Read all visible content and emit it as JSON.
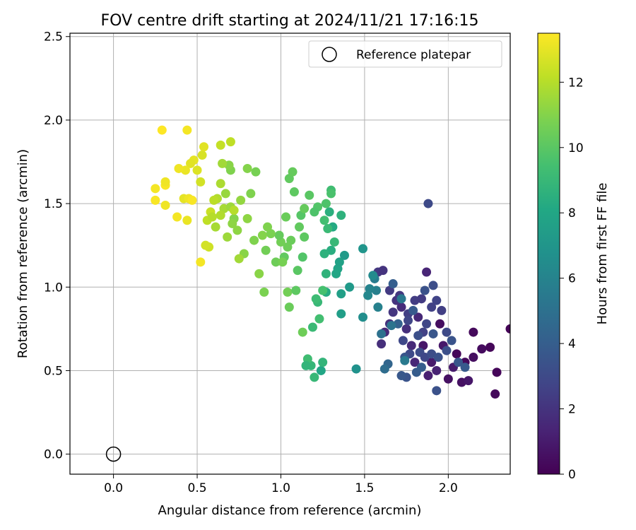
{
  "chart_data": {
    "type": "scatter",
    "title": "FOV centre drift starting at 2024/11/21 17:16:15",
    "xlabel": "Angular distance from reference (arcmin)",
    "ylabel": "Rotation from reference (arcmin)",
    "xlim": [
      -0.26,
      2.37
    ],
    "ylim": [
      -0.12,
      2.52
    ],
    "xticks": [
      0.0,
      0.5,
      1.0,
      1.5,
      2.0
    ],
    "xtick_labels": [
      "0.0",
      "0.5",
      "1.0",
      "1.5",
      "2.0"
    ],
    "yticks": [
      0.0,
      0.5,
      1.0,
      1.5,
      2.0,
      2.5
    ],
    "ytick_labels": [
      "0.0",
      "0.5",
      "1.0",
      "1.5",
      "2.0",
      "2.5"
    ],
    "grid": true,
    "legend": {
      "position": "top-right",
      "entries": [
        "Reference platepar"
      ]
    },
    "reference_point": {
      "name": "Reference platepar",
      "x": 0.0,
      "y": 0.0
    },
    "colorbar": {
      "label": "Hours from first FF file",
      "range": [
        0,
        13.5
      ],
      "ticks": [
        0,
        2,
        4,
        6,
        8,
        10,
        12
      ],
      "tick_labels": [
        "0",
        "2",
        "4",
        "6",
        "8",
        "10",
        "12"
      ],
      "colormap": "viridis"
    },
    "series": [
      {
        "points_format": [
          "x",
          "y",
          "hours"
        ],
        "points": [
          [
            2.05,
            0.6,
            0.2
          ],
          [
            2.1,
            0.55,
            0.3
          ],
          [
            2.15,
            0.58,
            0.5
          ],
          [
            2.2,
            0.63,
            0.4
          ],
          [
            2.25,
            0.64,
            0.2
          ],
          [
            2.29,
            0.49,
            0.2
          ],
          [
            2.28,
            0.36,
            0.3
          ],
          [
            2.15,
            0.73,
            0.3
          ],
          [
            1.95,
            0.78,
            0.5
          ],
          [
            1.85,
            0.65,
            0.8
          ],
          [
            2.0,
            0.45,
            0.6
          ],
          [
            2.08,
            0.43,
            0.6
          ],
          [
            2.12,
            0.44,
            0.8
          ],
          [
            1.9,
            0.55,
            1.0
          ],
          [
            1.88,
            0.47,
            1.2
          ],
          [
            1.93,
            0.5,
            1.3
          ],
          [
            1.97,
            0.65,
            0.9
          ],
          [
            2.03,
            0.52,
            1.0
          ],
          [
            1.8,
            0.55,
            1.5
          ],
          [
            1.78,
            0.65,
            1.6
          ],
          [
            1.75,
            0.75,
            1.8
          ],
          [
            1.82,
            0.82,
            1.5
          ],
          [
            1.87,
            1.09,
            1.4
          ],
          [
            1.72,
            0.88,
            1.7
          ],
          [
            1.69,
            0.92,
            2.0
          ],
          [
            1.65,
            0.78,
            1.9
          ],
          [
            1.62,
            0.73,
            1.6
          ],
          [
            1.6,
            0.66,
            1.8
          ],
          [
            1.67,
            0.85,
            2.1
          ],
          [
            1.58,
            1.09,
            2.2
          ],
          [
            1.61,
            1.1,
            2.0
          ],
          [
            1.65,
            0.98,
            2.3
          ],
          [
            1.71,
            0.95,
            2.2
          ],
          [
            1.76,
            0.84,
            2.5
          ],
          [
            1.8,
            0.92,
            2.4
          ],
          [
            1.84,
            0.93,
            2.3
          ],
          [
            1.9,
            0.88,
            2.6
          ],
          [
            1.93,
            0.92,
            2.7
          ],
          [
            1.96,
            0.86,
            2.5
          ],
          [
            1.87,
            0.78,
            2.8
          ],
          [
            1.73,
            0.68,
            2.9
          ],
          [
            1.77,
            0.6,
            3.0
          ],
          [
            1.83,
            0.61,
            3.1
          ],
          [
            1.86,
            0.58,
            2.9
          ],
          [
            1.9,
            0.6,
            3.2
          ],
          [
            1.94,
            0.58,
            3.4
          ],
          [
            1.99,
            0.62,
            3.3
          ],
          [
            2.02,
            0.68,
            3.5
          ],
          [
            2.06,
            0.55,
            3.6
          ],
          [
            2.1,
            0.52,
            3.8
          ],
          [
            1.88,
            1.5,
            3.0
          ],
          [
            1.91,
            1.01,
            3.2
          ],
          [
            1.86,
            0.98,
            3.4
          ],
          [
            1.75,
            0.46,
            3.5
          ],
          [
            1.72,
            0.47,
            3.7
          ],
          [
            1.81,
            0.49,
            3.9
          ],
          [
            1.84,
            0.52,
            4.0
          ],
          [
            1.79,
            0.86,
            3.8
          ],
          [
            1.7,
            0.78,
            4.2
          ],
          [
            1.64,
            0.54,
            4.4
          ],
          [
            1.67,
            1.02,
            4.0
          ],
          [
            1.74,
            0.58,
            3.6
          ],
          [
            1.93,
            0.38,
            3.4
          ],
          [
            1.99,
            0.73,
            3.0
          ],
          [
            1.85,
            0.73,
            2.6
          ],
          [
            1.76,
            0.8,
            2.8
          ],
          [
            1.82,
            0.71,
            3.3
          ],
          [
            1.91,
            0.72,
            3.6
          ],
          [
            1.62,
            0.51,
            4.8
          ],
          [
            1.6,
            0.72,
            5.0
          ],
          [
            1.66,
            0.77,
            5.2
          ],
          [
            1.72,
            0.93,
            5.4
          ],
          [
            1.74,
            0.56,
            5.5
          ],
          [
            1.57,
            0.98,
            5.8
          ],
          [
            1.53,
            0.99,
            6.0
          ],
          [
            1.58,
            0.88,
            5.9
          ],
          [
            1.56,
            1.05,
            5.6
          ],
          [
            1.52,
            0.95,
            6.2
          ],
          [
            1.55,
            1.07,
            6.4
          ],
          [
            1.49,
            0.82,
            6.6
          ],
          [
            1.45,
            0.51,
            6.8
          ],
          [
            1.49,
            1.23,
            7.0
          ],
          [
            1.41,
            1.0,
            7.2
          ],
          [
            1.38,
            1.19,
            7.3
          ],
          [
            1.36,
            0.84,
            7.5
          ],
          [
            1.36,
            0.96,
            7.6
          ],
          [
            1.34,
            1.11,
            7.8
          ],
          [
            1.33,
            1.08,
            8.0
          ],
          [
            1.35,
            1.15,
            7.7
          ],
          [
            1.31,
            1.36,
            8.2
          ],
          [
            1.3,
            1.22,
            8.4
          ],
          [
            1.29,
            1.45,
            8.5
          ],
          [
            1.27,
            1.08,
            8.7
          ],
          [
            1.27,
            0.97,
            8.3
          ],
          [
            1.26,
            1.2,
            8.6
          ],
          [
            1.24,
            0.5,
            8.0
          ],
          [
            1.25,
            0.55,
            8.8
          ],
          [
            1.2,
            0.46,
            9.0
          ],
          [
            1.19,
            0.76,
            9.1
          ],
          [
            1.18,
            0.53,
            8.9
          ],
          [
            1.16,
            0.57,
            9.3
          ],
          [
            1.15,
            0.53,
            8.8
          ],
          [
            1.22,
            0.91,
            9.0
          ],
          [
            1.21,
            0.93,
            9.2
          ],
          [
            1.23,
            0.81,
            9.4
          ],
          [
            1.25,
            0.98,
            9.5
          ],
          [
            1.28,
            1.35,
            9.1
          ],
          [
            1.3,
            1.58,
            9.3
          ],
          [
            1.32,
            1.27,
            9.0
          ],
          [
            1.36,
            1.43,
            8.6
          ],
          [
            1.3,
            1.56,
            9.6
          ],
          [
            1.27,
            1.5,
            9.7
          ],
          [
            1.26,
            1.4,
            9.4
          ],
          [
            1.22,
            1.48,
            9.8
          ],
          [
            1.2,
            1.45,
            9.7
          ],
          [
            1.17,
            1.55,
            10.0
          ],
          [
            1.12,
            1.43,
            9.9
          ],
          [
            1.14,
            1.3,
            10.1
          ],
          [
            1.13,
            1.18,
            9.8
          ],
          [
            1.11,
            1.36,
            10.2
          ],
          [
            1.1,
            1.1,
            10.0
          ],
          [
            1.14,
            1.47,
            10.3
          ],
          [
            1.08,
            1.57,
            10.1
          ],
          [
            1.06,
            1.28,
            10.4
          ],
          [
            1.04,
            1.24,
            10.5
          ],
          [
            1.02,
            1.18,
            10.2
          ],
          [
            1.0,
            1.27,
            10.6
          ],
          [
            1.03,
            1.42,
            10.4
          ],
          [
            0.99,
            1.31,
            10.3
          ],
          [
            0.97,
            1.15,
            10.5
          ],
          [
            1.01,
            1.15,
            10.7
          ],
          [
            1.05,
            1.65,
            10.2
          ],
          [
            1.07,
            1.69,
            10.3
          ],
          [
            1.04,
            0.97,
            10.6
          ],
          [
            1.05,
            0.88,
            10.4
          ],
          [
            1.09,
            0.98,
            10.1
          ],
          [
            1.13,
            0.73,
            10.5
          ],
          [
            0.94,
            1.32,
            10.8
          ],
          [
            0.91,
            1.22,
            10.6
          ],
          [
            0.92,
            1.36,
            10.9
          ],
          [
            0.89,
            1.31,
            11.0
          ],
          [
            0.9,
            0.97,
            10.8
          ],
          [
            0.87,
            1.08,
            11.1
          ],
          [
            0.84,
            1.28,
            10.9
          ],
          [
            0.85,
            1.69,
            10.7
          ],
          [
            0.82,
            1.56,
            10.9
          ],
          [
            0.8,
            1.71,
            11.0
          ],
          [
            0.8,
            1.41,
            11.2
          ],
          [
            0.78,
            1.2,
            11.1
          ],
          [
            0.74,
            1.34,
            11.2
          ],
          [
            0.76,
            1.52,
            11.3
          ],
          [
            0.72,
            1.41,
            11.0
          ],
          [
            0.71,
            1.38,
            11.2
          ],
          [
            0.7,
            1.7,
            10.9
          ],
          [
            0.67,
            1.56,
            11.4
          ],
          [
            0.68,
            1.3,
            11.5
          ],
          [
            0.69,
            1.73,
            11.1
          ],
          [
            0.65,
            1.74,
            11.6
          ],
          [
            0.64,
            1.62,
            11.8
          ],
          [
            0.62,
            1.53,
            11.9
          ],
          [
            0.66,
            1.47,
            11.7
          ],
          [
            0.7,
            1.48,
            11.5
          ],
          [
            0.75,
            1.17,
            11.6
          ],
          [
            0.72,
            1.46,
            12.0
          ],
          [
            0.7,
            1.87,
            12.2
          ],
          [
            0.64,
            1.85,
            12.3
          ],
          [
            0.6,
            1.52,
            12.1
          ],
          [
            0.58,
            1.45,
            12.4
          ],
          [
            0.56,
            1.4,
            12.2
          ],
          [
            0.57,
            1.24,
            12.5
          ],
          [
            0.55,
            1.25,
            12.6
          ],
          [
            0.53,
            1.79,
            12.7
          ],
          [
            0.54,
            1.84,
            12.9
          ],
          [
            0.5,
            1.7,
            12.8
          ],
          [
            0.48,
            1.76,
            13.0
          ],
          [
            0.46,
            1.74,
            12.9
          ],
          [
            0.43,
            1.7,
            13.1
          ],
          [
            0.44,
            1.94,
            13.3
          ],
          [
            0.39,
            1.71,
            13.2
          ],
          [
            0.42,
            1.53,
            13.0
          ],
          [
            0.45,
            1.53,
            13.2
          ],
          [
            0.47,
            1.52,
            13.4
          ],
          [
            0.38,
            1.42,
            13.3
          ],
          [
            0.44,
            1.4,
            13.1
          ],
          [
            0.31,
            1.61,
            13.4
          ],
          [
            0.31,
            1.63,
            13.2
          ],
          [
            0.25,
            1.59,
            13.3
          ],
          [
            0.25,
            1.52,
            13.4
          ],
          [
            0.31,
            1.49,
            13.2
          ],
          [
            0.29,
            1.94,
            13.5
          ],
          [
            0.52,
            1.15,
            13.3
          ],
          [
            0.52,
            1.63,
            12.6
          ],
          [
            0.59,
            1.42,
            12.0
          ],
          [
            0.61,
            1.36,
            11.7
          ],
          [
            0.64,
            1.43,
            11.9
          ],
          [
            2.37,
            0.75,
            0.1
          ]
        ]
      }
    ]
  }
}
